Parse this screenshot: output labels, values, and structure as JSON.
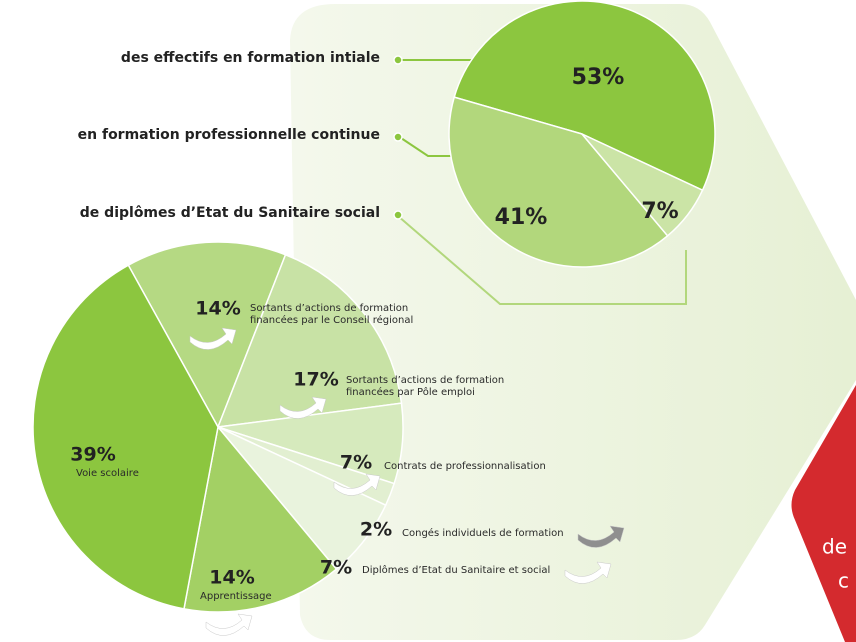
{
  "chart_data": [
    {
      "type": "pie",
      "categories": [
        "des effectifs en formation intiale",
        "en formation professionnelle continue",
        "de diplômes d’Etat du Sanitaire social"
      ],
      "values": [
        53,
        41,
        7
      ],
      "value_labels": [
        "53%",
        "41%",
        "7%"
      ],
      "colors": [
        "#8cc63f",
        "#b2d77c",
        "#cbe4a6"
      ]
    },
    {
      "type": "pie",
      "categories": [
        "Sortants d’actions de formation financées par le Conseil régional",
        "Sortants d’actions de formation financées par Pôle emploi",
        "Contrats de professionnalisation",
        "Congés individuels de formation",
        "Diplômes d’Etat du Sanitaire et social",
        "Apprentissage",
        "Voie scolaire"
      ],
      "values": [
        14,
        17,
        7,
        2,
        7,
        14,
        39
      ],
      "value_labels": [
        "14%",
        "17%",
        "7%",
        "2%",
        "7%",
        "14%",
        "39%"
      ],
      "colors": [
        "#b5d983",
        "#c8e2a5",
        "#d6eabd",
        "#e2efd1",
        "#e9f3dd",
        "#a3d064",
        "#8cc63f"
      ]
    }
  ],
  "side_panel": {
    "lines": [
      "de",
      "c"
    ]
  }
}
